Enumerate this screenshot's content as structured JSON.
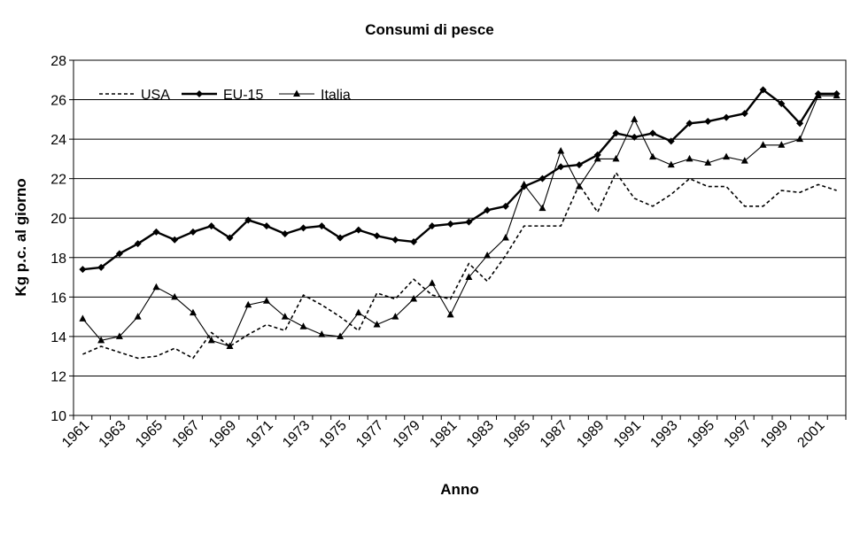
{
  "chart_data": {
    "type": "line",
    "title": "Consumi di pesce",
    "xlabel": "Anno",
    "ylabel": "Kg p.c. al giorno",
    "ylim": [
      10,
      28
    ],
    "yticks": [
      10,
      12,
      14,
      16,
      18,
      20,
      22,
      24,
      26,
      28
    ],
    "grid": "horizontal",
    "legend_position": "top-left",
    "x": [
      1961,
      1962,
      1963,
      1964,
      1965,
      1966,
      1967,
      1968,
      1969,
      1970,
      1971,
      1972,
      1973,
      1974,
      1975,
      1976,
      1977,
      1978,
      1979,
      1980,
      1981,
      1982,
      1983,
      1984,
      1985,
      1986,
      1987,
      1988,
      1989,
      1990,
      1991,
      1992,
      1993,
      1994,
      1995,
      1996,
      1997,
      1998,
      1999,
      2000,
      2001,
      2002
    ],
    "xtick_labels": [
      "1961",
      "1963",
      "1965",
      "1967",
      "1969",
      "1971",
      "1973",
      "1975",
      "1977",
      "1979",
      "1981",
      "1983",
      "1985",
      "1987",
      "1989",
      "1991",
      "1993",
      "1995",
      "1997",
      "1999",
      "2001"
    ],
    "series": [
      {
        "name": "USA",
        "style": "dashed",
        "marker": "none",
        "values": [
          13.1,
          13.5,
          13.2,
          12.9,
          13.0,
          13.4,
          12.9,
          14.2,
          13.5,
          14.1,
          14.6,
          14.3,
          16.1,
          15.6,
          15.0,
          14.3,
          16.2,
          15.9,
          16.9,
          16.1,
          15.9,
          17.7,
          16.8,
          18.1,
          19.6,
          19.6,
          19.6,
          21.7,
          20.3,
          22.3,
          21.0,
          20.6,
          21.2,
          22.0,
          21.6,
          21.6,
          20.6,
          20.6,
          21.4,
          21.3,
          21.7,
          21.4
        ]
      },
      {
        "name": "EU-15",
        "style": "bold",
        "marker": "diamond",
        "values": [
          17.4,
          17.5,
          18.2,
          18.7,
          19.3,
          18.9,
          19.3,
          19.6,
          19.0,
          19.9,
          19.6,
          19.2,
          19.5,
          19.6,
          19.0,
          19.4,
          19.1,
          18.9,
          18.8,
          19.6,
          19.7,
          19.8,
          20.4,
          20.6,
          21.6,
          22.0,
          22.6,
          22.7,
          23.2,
          24.3,
          24.1,
          24.3,
          23.9,
          24.8,
          24.9,
          25.1,
          25.3,
          26.5,
          25.8,
          24.8,
          26.3,
          26.3
        ]
      },
      {
        "name": "Italia",
        "style": "thin",
        "marker": "triangle",
        "values": [
          14.9,
          13.8,
          14.0,
          15.0,
          16.5,
          16.0,
          15.2,
          13.8,
          13.5,
          15.6,
          15.8,
          15.0,
          14.5,
          14.1,
          14.0,
          15.2,
          14.6,
          15.0,
          15.9,
          16.7,
          15.1,
          17.0,
          18.1,
          19.0,
          21.7,
          20.5,
          23.4,
          21.6,
          23.0,
          23.0,
          25.0,
          23.1,
          22.7,
          23.0,
          22.8,
          23.1,
          22.9,
          23.7,
          23.7,
          24.0,
          26.2,
          26.2
        ]
      }
    ]
  }
}
